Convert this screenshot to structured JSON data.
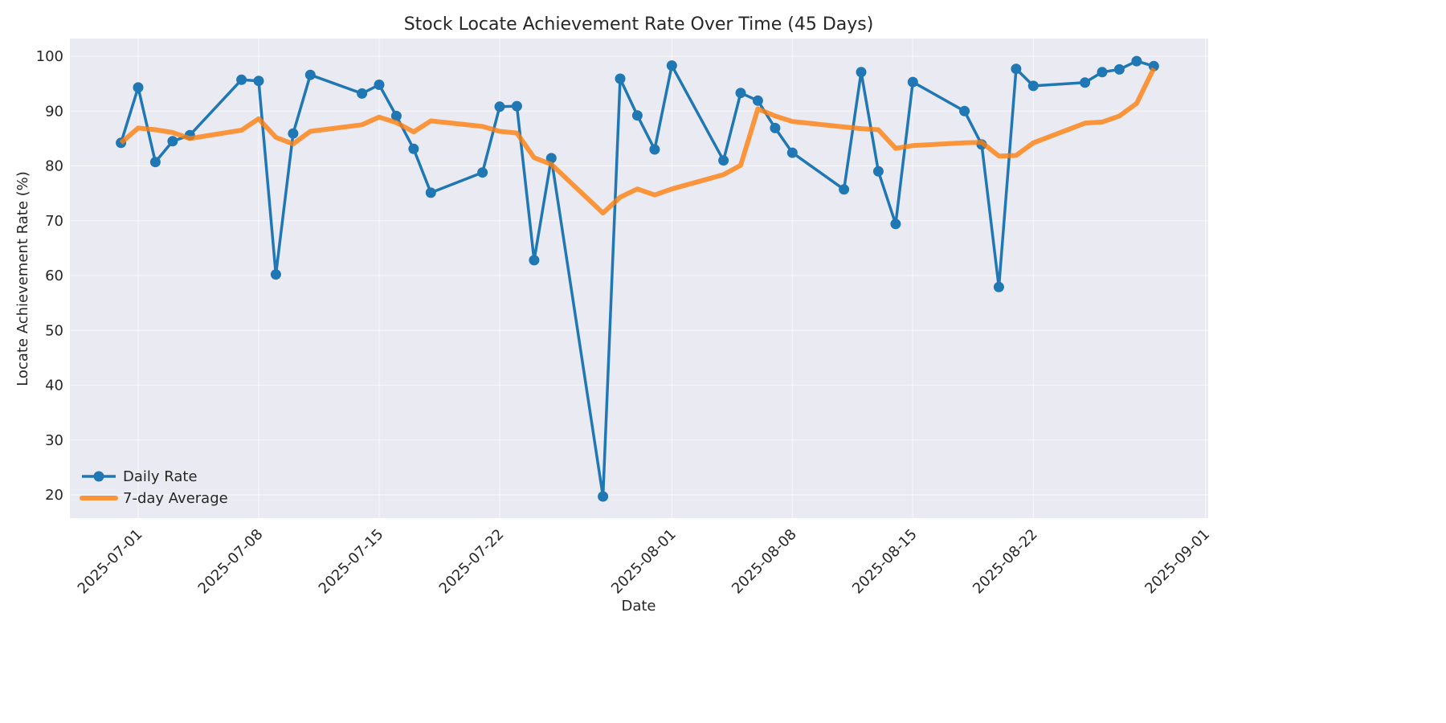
{
  "chart_data": {
    "type": "line",
    "title": "Stock Locate Achievement Rate Over Time (45 Days)",
    "xlabel": "Date",
    "ylabel": "Locate Achievement Rate (%)",
    "ylim": [
      16,
      103
    ],
    "xlim": [
      "2025-06-27",
      "2025-09-01"
    ],
    "grid": true,
    "legend_position": "lower left",
    "y_ticks": [
      20,
      30,
      40,
      50,
      60,
      70,
      80,
      90,
      100
    ],
    "x_ticks": [
      "2025-07-01",
      "2025-07-08",
      "2025-07-15",
      "2025-07-22",
      "2025-08-01",
      "2025-08-08",
      "2025-08-15",
      "2025-08-22",
      "2025-09-01"
    ],
    "x": [
      "2025-06-30",
      "2025-07-01",
      "2025-07-02",
      "2025-07-03",
      "2025-07-04",
      "2025-07-07",
      "2025-07-08",
      "2025-07-09",
      "2025-07-10",
      "2025-07-11",
      "2025-07-14",
      "2025-07-15",
      "2025-07-16",
      "2025-07-17",
      "2025-07-18",
      "2025-07-21",
      "2025-07-22",
      "2025-07-23",
      "2025-07-24",
      "2025-07-25",
      "2025-07-28",
      "2025-07-29",
      "2025-07-30",
      "2025-07-31",
      "2025-08-01",
      "2025-08-04",
      "2025-08-05",
      "2025-08-06",
      "2025-08-07",
      "2025-08-08",
      "2025-08-11",
      "2025-08-12",
      "2025-08-13",
      "2025-08-14",
      "2025-08-15",
      "2025-08-18",
      "2025-08-19",
      "2025-08-20",
      "2025-08-21",
      "2025-08-22",
      "2025-08-25",
      "2025-08-26",
      "2025-08-27",
      "2025-08-28",
      "2025-08-29"
    ],
    "series": [
      {
        "name": "Daily Rate",
        "color": "#1f77b4",
        "marker": "circle",
        "values": [
          84.2,
          94.3,
          80.7,
          84.5,
          85.6,
          95.7,
          95.5,
          60.2,
          85.9,
          96.6,
          93.2,
          94.8,
          89.1,
          83.1,
          75.1,
          78.8,
          90.8,
          90.9,
          62.8,
          81.4,
          19.7,
          95.9,
          89.2,
          83.0,
          98.3,
          81.0,
          93.3,
          91.9,
          86.9,
          82.4,
          75.7,
          97.1,
          79.0,
          69.4,
          95.3,
          90.0,
          83.9,
          57.9,
          97.7,
          94.6,
          95.2,
          97.1,
          97.6,
          99.1,
          98.2
        ]
      },
      {
        "name": "7-day Average",
        "color": "#ff7f0e",
        "marker": "none",
        "values": [
          84.2,
          86.9,
          86.6,
          86.1,
          85.0,
          86.5,
          88.6,
          85.2,
          84.0,
          86.3,
          87.5,
          88.9,
          87.9,
          86.2,
          88.2,
          87.2,
          86.3,
          86.0,
          81.5,
          80.3,
          71.4,
          74.3,
          75.8,
          74.7,
          75.8,
          78.4,
          80.1,
          90.4,
          89.1,
          88.1,
          87.1,
          86.8,
          86.6,
          83.2,
          83.7,
          84.2,
          84.3,
          81.8,
          81.9,
          84.2,
          87.8,
          88.0,
          89.1,
          91.4,
          97.8
        ]
      }
    ]
  }
}
